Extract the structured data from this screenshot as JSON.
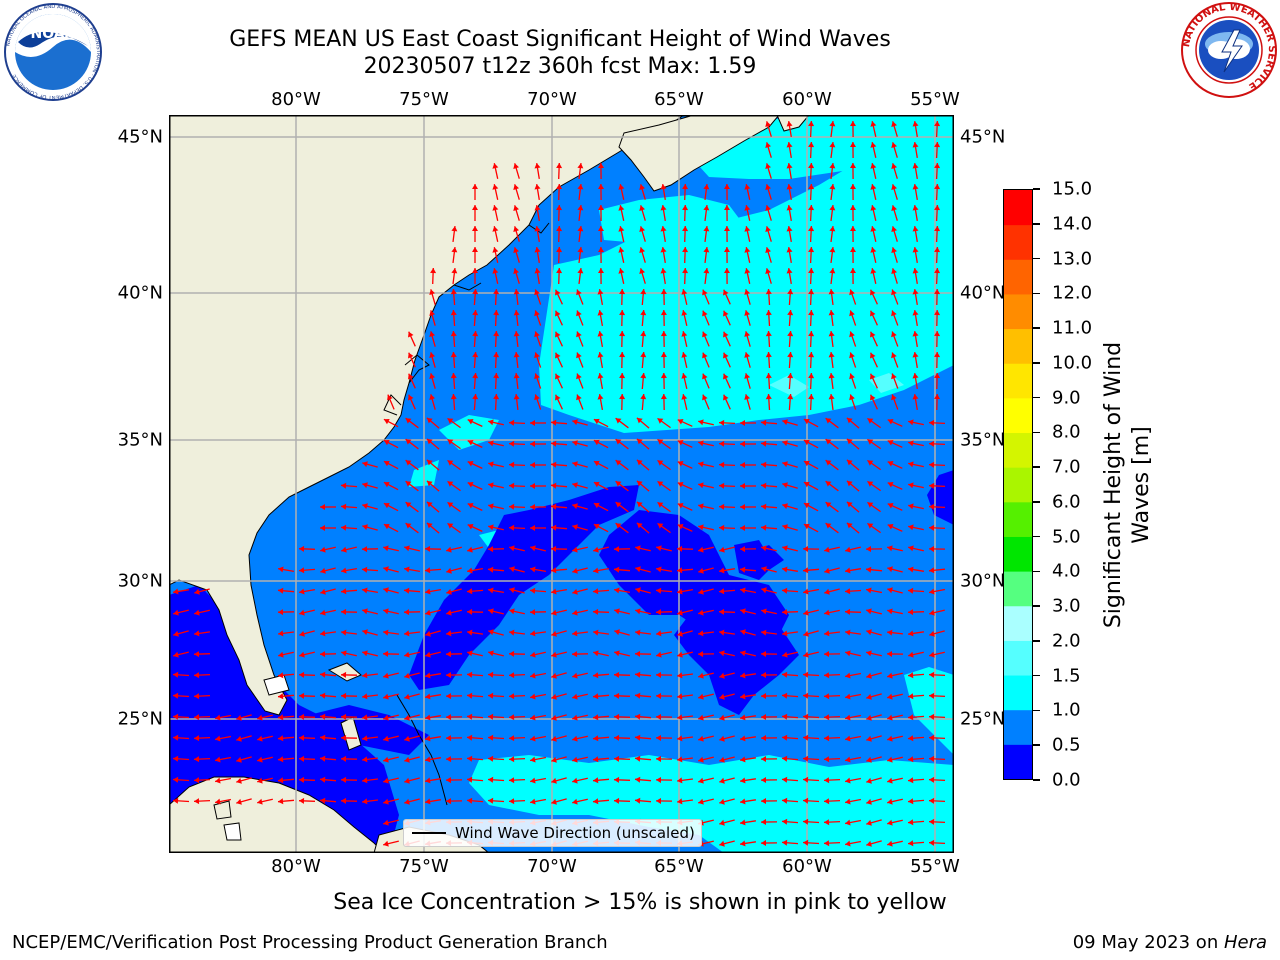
{
  "header": {
    "title_line1": "GEFS MEAN US East Coast Significant Height of Wind Waves",
    "title_line2": "20230507 t12z 360h fcst   Max: 1.59"
  },
  "logos": {
    "left": {
      "text": "NOAA",
      "ring_text": "NATIONAL OCEANIC AND ATMOSPHERIC ADMINISTRATION · U.S. DEPARTMENT OF COMMERCE"
    },
    "right": {
      "ring_text": "NATIONAL WEATHER SERVICE"
    }
  },
  "map": {
    "lon_labels": [
      "80°W",
      "75°W",
      "70°W",
      "65°W",
      "60°W",
      "55°W"
    ],
    "lat_labels": [
      "45°N",
      "40°N",
      "35°N",
      "30°N",
      "25°N"
    ],
    "colors": {
      "land": "#efefdc",
      "sea_0_05": "#0000ff",
      "sea_05_10": "#0080ff",
      "sea_10_15": "#00ffff",
      "grid": "#b0b0b0",
      "arrow": "#ff0000"
    },
    "legend_label": "Wind Wave Direction (unscaled)"
  },
  "colorbar": {
    "label_line1": "Significant Height of Wind",
    "label_line2": "Waves [m]",
    "ticks": [
      "0.0",
      "0.5",
      "1.0",
      "1.5",
      "2.0",
      "3.0",
      "4.0",
      "5.0",
      "6.0",
      "7.0",
      "8.0",
      "9.0",
      "10.0",
      "11.0",
      "12.0",
      "13.0",
      "14.0",
      "15.0"
    ],
    "colors": [
      "#0000ff",
      "#0080ff",
      "#00ffff",
      "#55ffff",
      "#aaffff",
      "#55ff80",
      "#00e600",
      "#55f000",
      "#aaf500",
      "#d4f500",
      "#ffff00",
      "#ffe600",
      "#ffbf00",
      "#ff8c00",
      "#ff6400",
      "#ff3200",
      "#ff0000"
    ]
  },
  "notes": {
    "sea_ice": "Sea Ice Concentration > 15% is shown in pink to yellow",
    "footer_left": "NCEP/EMC/Verification Post Processing Product Generation Branch",
    "footer_date": "09 May 2023 on ",
    "footer_host": "Hera"
  }
}
